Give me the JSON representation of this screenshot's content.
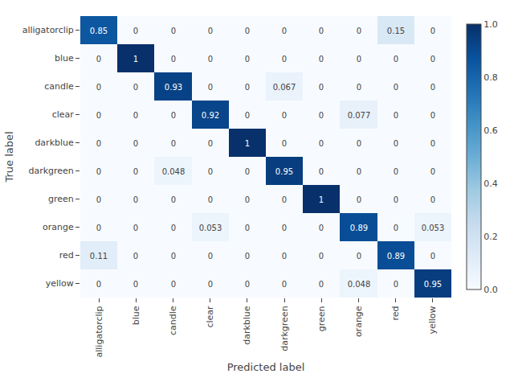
{
  "chart_data": {
    "type": "heatmap",
    "xlabel": "Predicted label",
    "ylabel": "True label",
    "categories": [
      "alligatorclip",
      "blue",
      "candle",
      "clear",
      "darkblue",
      "darkgreen",
      "green",
      "orange",
      "red",
      "yellow"
    ],
    "values": [
      [
        0.85,
        0,
        0,
        0,
        0,
        0,
        0,
        0,
        0.15,
        0
      ],
      [
        0,
        1,
        0,
        0,
        0,
        0,
        0,
        0,
        0,
        0
      ],
      [
        0,
        0,
        0.93,
        0,
        0,
        0.067,
        0,
        0,
        0,
        0
      ],
      [
        0,
        0,
        0,
        0.92,
        0,
        0,
        0,
        0.077,
        0,
        0
      ],
      [
        0,
        0,
        0,
        0,
        1,
        0,
        0,
        0,
        0,
        0
      ],
      [
        0,
        0,
        0.048,
        0,
        0,
        0.95,
        0,
        0,
        0,
        0
      ],
      [
        0,
        0,
        0,
        0,
        0,
        0,
        1,
        0,
        0,
        0
      ],
      [
        0,
        0,
        0,
        0.053,
        0,
        0,
        0,
        0.89,
        0,
        0.053
      ],
      [
        0.11,
        0,
        0,
        0,
        0,
        0,
        0,
        0,
        0.89,
        0
      ],
      [
        0,
        0,
        0,
        0,
        0,
        0,
        0,
        0.048,
        0,
        0.95
      ]
    ],
    "color": "Blues",
    "colorbar_range": [
      0,
      1
    ],
    "colorbar_ticks": [
      {
        "value": 0,
        "label": "0.0"
      },
      0.2,
      0.4,
      0.6,
      0.8,
      {
        "value": 1,
        "label": "1.0"
      }
    ],
    "data_labels": true,
    "grid": false
  }
}
